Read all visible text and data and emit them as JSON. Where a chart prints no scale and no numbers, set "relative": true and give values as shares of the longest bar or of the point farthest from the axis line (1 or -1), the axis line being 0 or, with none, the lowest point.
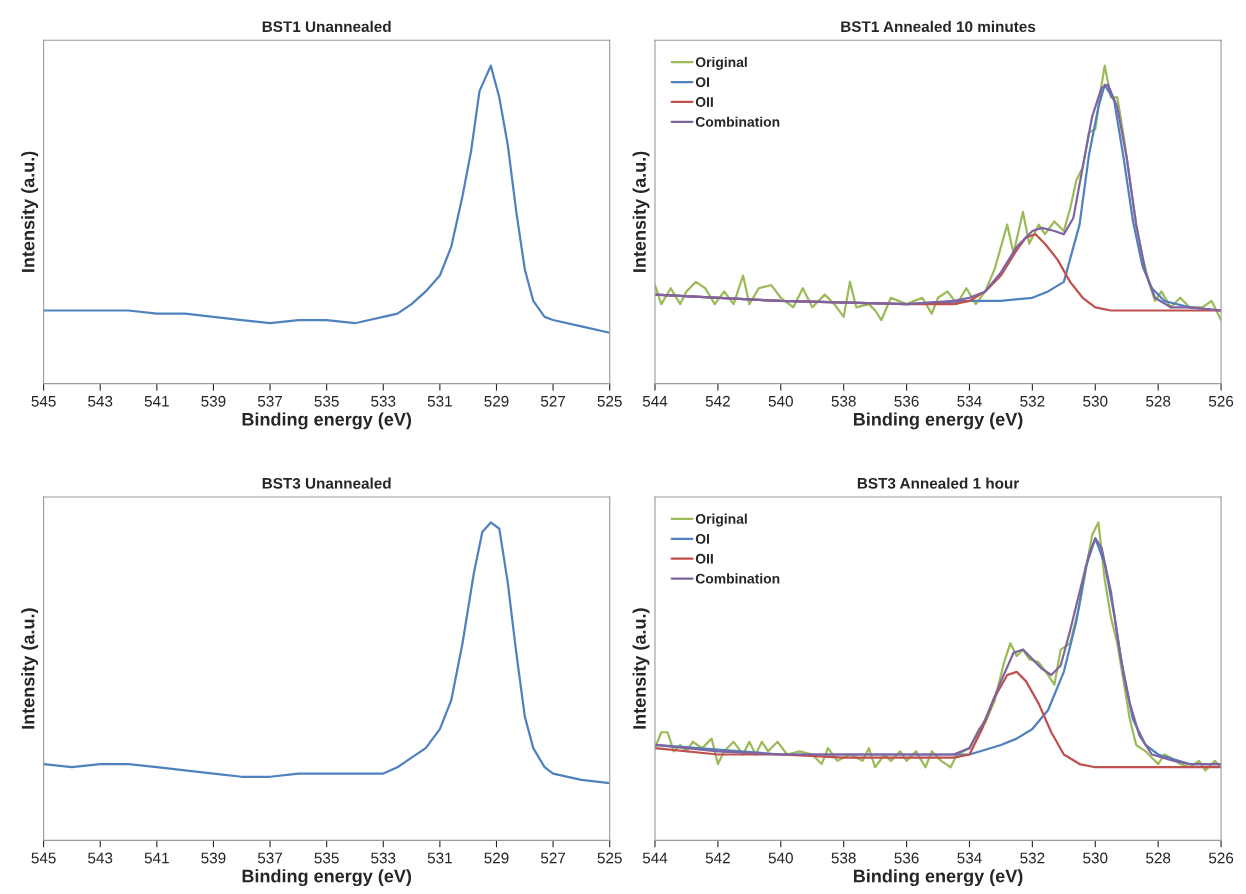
{
  "chart_data": [
    {
      "type": "line",
      "title": "BST1 Unannealed",
      "xlabel": "Binding energy (eV)",
      "ylabel": "Intensity (a.u.)",
      "relative": true,
      "xlim": [
        545,
        525
      ],
      "xticks": [
        545,
        543,
        541,
        539,
        537,
        535,
        533,
        531,
        529,
        527,
        525
      ],
      "grid": false,
      "legend": false,
      "series": [
        {
          "color": "#4f81bd",
          "x": [
            545,
            544,
            543,
            542.5,
            542,
            541,
            540,
            539,
            538,
            537,
            536,
            535,
            534,
            533.5,
            533,
            532.5,
            532,
            531.5,
            531,
            530.6,
            530.2,
            529.9,
            529.6,
            529.2,
            528.9,
            528.6,
            528.3,
            528.0,
            527.7,
            527.3,
            527,
            526,
            525
          ],
          "values": [
            0.23,
            0.23,
            0.23,
            0.23,
            0.23,
            0.22,
            0.22,
            0.21,
            0.2,
            0.19,
            0.2,
            0.2,
            0.19,
            0.2,
            0.21,
            0.22,
            0.25,
            0.29,
            0.34,
            0.43,
            0.59,
            0.73,
            0.92,
            1.0,
            0.9,
            0.75,
            0.54,
            0.36,
            0.26,
            0.21,
            0.2,
            0.18,
            0.16
          ]
        }
      ]
    },
    {
      "type": "line",
      "title": "BST1 Annealed 10 minutes",
      "xlabel": "Binding energy (eV)",
      "ylabel": "Intensity (a.u.)",
      "relative": true,
      "xlim": [
        544,
        526
      ],
      "xticks": [
        544,
        542,
        540,
        538,
        536,
        534,
        532,
        530,
        528,
        526
      ],
      "grid": false,
      "legend": "top left",
      "series": [
        {
          "name": "Original",
          "color": "#9bbb59",
          "x": [
            544,
            543.8,
            543.5,
            543.2,
            543,
            542.7,
            542.4,
            542.1,
            541.8,
            541.5,
            541.2,
            541,
            540.7,
            540.3,
            540,
            539.6,
            539.3,
            539,
            538.6,
            538.3,
            538,
            537.8,
            537.6,
            537.2,
            537,
            536.8,
            536.5,
            536,
            535.5,
            535.2,
            535,
            534.7,
            534.4,
            534.1,
            533.8,
            533.5,
            533.2,
            533,
            532.8,
            532.6,
            532.3,
            532.1,
            531.8,
            531.6,
            531.3,
            531,
            530.8,
            530.6,
            530.4,
            530.2,
            530.0,
            529.8,
            529.7,
            529.5,
            529.3,
            529.1,
            528.9,
            528.7,
            528.5,
            528.3,
            528.1,
            527.9,
            527.6,
            527.3,
            527,
            526.6,
            526.3,
            526
          ],
          "values": [
            0.31,
            0.25,
            0.3,
            0.25,
            0.29,
            0.32,
            0.3,
            0.25,
            0.29,
            0.25,
            0.34,
            0.25,
            0.3,
            0.31,
            0.27,
            0.24,
            0.3,
            0.24,
            0.28,
            0.25,
            0.21,
            0.32,
            0.24,
            0.25,
            0.23,
            0.2,
            0.27,
            0.25,
            0.27,
            0.22,
            0.27,
            0.29,
            0.25,
            0.3,
            0.25,
            0.29,
            0.36,
            0.43,
            0.5,
            0.41,
            0.54,
            0.44,
            0.5,
            0.47,
            0.51,
            0.48,
            0.55,
            0.64,
            0.68,
            0.79,
            0.8,
            0.94,
            1.0,
            0.9,
            0.9,
            0.78,
            0.64,
            0.5,
            0.4,
            0.32,
            0.26,
            0.29,
            0.24,
            0.27,
            0.24,
            0.24,
            0.26,
            0.2
          ]
        },
        {
          "name": "OI",
          "color": "#4f81bd",
          "x": [
            544,
            540,
            536,
            534,
            533,
            532,
            531.5,
            531,
            530.5,
            530.2,
            529.9,
            529.7,
            529.4,
            529.1,
            528.8,
            528.5,
            528.2,
            527.8,
            527,
            526
          ],
          "values": [
            0.28,
            0.26,
            0.25,
            0.26,
            0.26,
            0.27,
            0.29,
            0.32,
            0.5,
            0.72,
            0.87,
            0.94,
            0.89,
            0.71,
            0.51,
            0.37,
            0.3,
            0.26,
            0.24,
            0.23
          ]
        },
        {
          "name": "OII",
          "color": "#c0504d",
          "x": [
            544,
            540,
            536,
            534.5,
            534,
            533.5,
            533,
            532.5,
            532.2,
            531.9,
            531.6,
            531.2,
            530.8,
            530.4,
            530,
            529.5,
            528,
            526
          ],
          "values": [
            0.28,
            0.26,
            0.25,
            0.25,
            0.26,
            0.29,
            0.34,
            0.42,
            0.46,
            0.47,
            0.44,
            0.39,
            0.32,
            0.27,
            0.24,
            0.23,
            0.23,
            0.23
          ]
        },
        {
          "name": "Combination",
          "color": "#8064a2",
          "x": [
            544,
            540,
            536,
            534.5,
            534,
            533.5,
            533,
            532.5,
            532,
            531.7,
            531.3,
            531,
            530.7,
            530.4,
            530.1,
            529.8,
            529.6,
            529.3,
            529,
            528.7,
            528.4,
            528.1,
            527.6,
            527,
            526
          ],
          "values": [
            0.28,
            0.26,
            0.25,
            0.26,
            0.27,
            0.29,
            0.35,
            0.43,
            0.48,
            0.49,
            0.48,
            0.47,
            0.52,
            0.68,
            0.84,
            0.93,
            0.94,
            0.87,
            0.71,
            0.5,
            0.35,
            0.27,
            0.24,
            0.24,
            0.23
          ]
        }
      ]
    },
    {
      "type": "line",
      "title": "BST3 Unannealed",
      "xlabel": "Binding energy (eV)",
      "ylabel": "Intensity (a.u.)",
      "relative": true,
      "xlim": [
        545,
        525
      ],
      "xticks": [
        545,
        543,
        541,
        539,
        537,
        535,
        533,
        531,
        529,
        527,
        525
      ],
      "grid": false,
      "legend": false,
      "series": [
        {
          "color": "#4f81bd",
          "x": [
            545,
            544,
            543,
            542,
            541,
            540,
            539,
            538,
            537,
            536,
            535,
            534,
            533,
            532.5,
            532,
            531.5,
            531,
            530.6,
            530.2,
            529.8,
            529.5,
            529.2,
            528.9,
            528.6,
            528.3,
            528.0,
            527.7,
            527.3,
            527,
            526,
            525
          ],
          "values": [
            0.24,
            0.23,
            0.24,
            0.24,
            0.23,
            0.22,
            0.21,
            0.2,
            0.2,
            0.21,
            0.21,
            0.21,
            0.21,
            0.23,
            0.26,
            0.29,
            0.35,
            0.44,
            0.62,
            0.84,
            0.97,
            1.0,
            0.98,
            0.81,
            0.59,
            0.39,
            0.29,
            0.23,
            0.21,
            0.19,
            0.18
          ]
        }
      ]
    },
    {
      "type": "line",
      "title": "BST3 Annealed 1 hour",
      "xlabel": "Binding energy (eV)",
      "ylabel": "Intensity (a.u.)",
      "relative": true,
      "xlim": [
        544,
        526
      ],
      "xticks": [
        544,
        542,
        540,
        538,
        536,
        534,
        532,
        530,
        528,
        526
      ],
      "grid": false,
      "legend": "top left",
      "series": [
        {
          "name": "Original",
          "color": "#9bbb59",
          "x": [
            544,
            543.8,
            543.6,
            543.4,
            543.2,
            543,
            542.8,
            542.5,
            542.2,
            542,
            541.8,
            541.5,
            541.2,
            541,
            540.8,
            540.6,
            540.4,
            540.1,
            539.8,
            539.4,
            539,
            538.7,
            538.5,
            538.2,
            537.8,
            537.4,
            537.2,
            537,
            536.7,
            536.5,
            536.2,
            536,
            535.7,
            535.4,
            535.2,
            534.9,
            534.6,
            534.4,
            534,
            533.7,
            533.5,
            533.2,
            532.9,
            532.7,
            532.5,
            532.3,
            532.1,
            531.8,
            531.5,
            531.3,
            531.1,
            530.8,
            530.5,
            530.3,
            530.1,
            529.9,
            529.7,
            529.5,
            529.3,
            529.1,
            528.9,
            528.7,
            528.4,
            528.2,
            528,
            527.8,
            527.6,
            527.3,
            527,
            526.7,
            526.5,
            526.2,
            526
          ],
          "values": [
            0.29,
            0.34,
            0.34,
            0.28,
            0.3,
            0.28,
            0.31,
            0.29,
            0.32,
            0.24,
            0.28,
            0.31,
            0.27,
            0.31,
            0.27,
            0.31,
            0.28,
            0.31,
            0.27,
            0.28,
            0.27,
            0.24,
            0.29,
            0.25,
            0.27,
            0.25,
            0.29,
            0.23,
            0.27,
            0.25,
            0.28,
            0.25,
            0.28,
            0.23,
            0.28,
            0.25,
            0.23,
            0.27,
            0.29,
            0.35,
            0.37,
            0.44,
            0.56,
            0.62,
            0.58,
            0.6,
            0.57,
            0.56,
            0.52,
            0.49,
            0.6,
            0.62,
            0.74,
            0.85,
            0.96,
            1.0,
            0.82,
            0.7,
            0.62,
            0.5,
            0.38,
            0.3,
            0.28,
            0.26,
            0.24,
            0.27,
            0.26,
            0.24,
            0.23,
            0.25,
            0.22,
            0.25,
            0.23
          ]
        },
        {
          "name": "OI",
          "color": "#4f81bd",
          "x": [
            544,
            540,
            536,
            534,
            533,
            532.5,
            532,
            531.5,
            531,
            530.6,
            530.3,
            530.0,
            529.7,
            529.4,
            529.1,
            528.8,
            528.4,
            528,
            527,
            526
          ],
          "values": [
            0.3,
            0.27,
            0.27,
            0.27,
            0.3,
            0.32,
            0.35,
            0.41,
            0.53,
            0.69,
            0.86,
            0.95,
            0.87,
            0.71,
            0.52,
            0.38,
            0.3,
            0.27,
            0.24,
            0.24
          ]
        },
        {
          "name": "OII",
          "color": "#c0504d",
          "x": [
            544,
            542,
            540,
            538,
            536,
            534.5,
            534,
            533.6,
            533.2,
            532.8,
            532.5,
            532.2,
            531.8,
            531.4,
            531,
            530.5,
            530,
            529,
            526
          ],
          "values": [
            0.29,
            0.27,
            0.27,
            0.26,
            0.26,
            0.26,
            0.27,
            0.35,
            0.45,
            0.52,
            0.53,
            0.5,
            0.43,
            0.34,
            0.27,
            0.24,
            0.23,
            0.23,
            0.23
          ]
        },
        {
          "name": "Combination",
          "color": "#8064a2",
          "x": [
            544,
            542,
            540,
            538,
            536,
            534.5,
            534,
            533.5,
            533,
            532.6,
            532.3,
            532,
            531.7,
            531.4,
            531.1,
            530.8,
            530.5,
            530.2,
            530.0,
            529.8,
            529.5,
            529.2,
            528.9,
            528.6,
            528.2,
            527.5,
            527,
            526
          ],
          "values": [
            0.3,
            0.28,
            0.27,
            0.27,
            0.27,
            0.27,
            0.29,
            0.38,
            0.5,
            0.59,
            0.6,
            0.57,
            0.54,
            0.52,
            0.55,
            0.66,
            0.78,
            0.9,
            0.95,
            0.92,
            0.78,
            0.58,
            0.43,
            0.33,
            0.27,
            0.25,
            0.24,
            0.24
          ]
        }
      ]
    }
  ]
}
